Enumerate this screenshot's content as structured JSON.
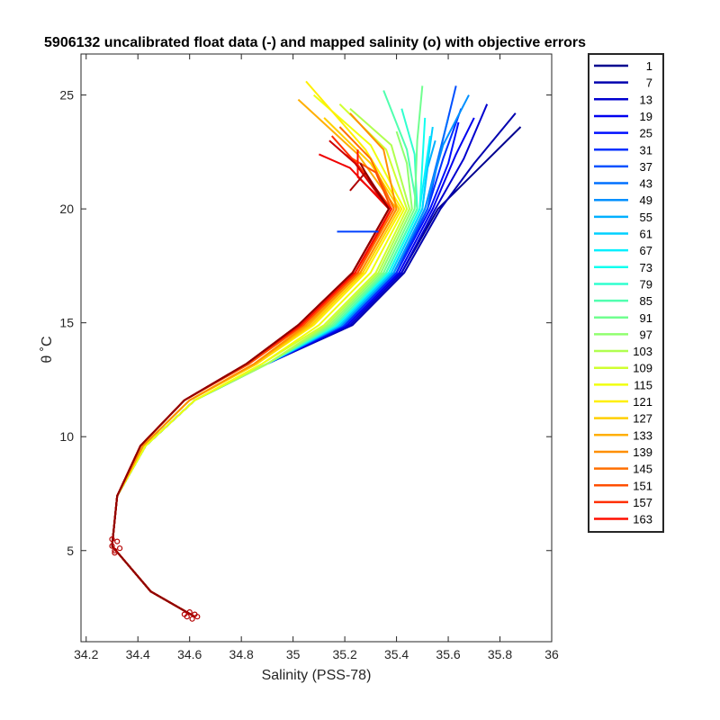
{
  "chart_data": {
    "type": "line",
    "title": "5906132 uncalibrated float data (-) and mapped salinity (o) with objective errors",
    "xlabel": "Salinity (PSS-78)",
    "ylabel": "θ ˚C",
    "xlim": [
      34.18,
      36.0
    ],
    "ylim": [
      1.0,
      26.8
    ],
    "x_ticks": [
      34.2,
      34.4,
      34.6,
      34.8,
      35,
      35.2,
      35.4,
      35.6,
      35.8,
      36
    ],
    "x_tick_labels": [
      "34.2",
      "34.4",
      "34.6",
      "34.8",
      "35",
      "35.2",
      "35.4",
      "35.6",
      "35.8",
      "36"
    ],
    "y_ticks": [
      5,
      10,
      15,
      20,
      25
    ],
    "y_tick_labels": [
      "5",
      "10",
      "15",
      "20",
      "25"
    ],
    "grid": false,
    "legend_position": "outside-right",
    "colormap": "jet",
    "series": [
      {
        "name": "1",
        "color": "#00008f",
        "x": [
          34.62,
          34.45,
          34.3,
          34.32,
          34.43,
          34.62,
          34.9,
          35.22,
          35.42,
          35.56,
          35.72,
          35.88
        ],
        "y": [
          2.1,
          3.2,
          5.2,
          7.4,
          9.6,
          11.6,
          13.2,
          14.9,
          17.2,
          20.0,
          21.8,
          23.6
        ]
      },
      {
        "name": "7",
        "color": "#0000af",
        "x": [
          34.62,
          34.45,
          34.3,
          34.32,
          34.43,
          34.62,
          34.9,
          35.23,
          35.43,
          35.57,
          35.7,
          35.86
        ],
        "y": [
          2.1,
          3.2,
          5.2,
          7.4,
          9.6,
          11.6,
          13.2,
          14.9,
          17.2,
          20.0,
          22.0,
          24.2
        ]
      },
      {
        "name": "13",
        "color": "#0000cf",
        "x": [
          34.62,
          34.45,
          34.3,
          34.32,
          34.43,
          34.62,
          34.9,
          35.22,
          35.42,
          35.55,
          35.66,
          35.75
        ],
        "y": [
          2.1,
          3.2,
          5.2,
          7.4,
          9.6,
          11.6,
          13.2,
          14.9,
          17.2,
          20.0,
          22.2,
          24.6
        ]
      },
      {
        "name": "19",
        "color": "#0000ef",
        "x": [
          34.62,
          34.45,
          34.3,
          34.32,
          34.43,
          34.62,
          34.9,
          35.21,
          35.41,
          35.54,
          35.63,
          35.7
        ],
        "y": [
          2.1,
          3.2,
          5.2,
          7.4,
          9.6,
          11.6,
          13.2,
          14.9,
          17.2,
          20.0,
          22.4,
          24.0
        ]
      },
      {
        "name": "25",
        "color": "#0010ff",
        "x": [
          34.62,
          34.45,
          34.3,
          34.32,
          34.43,
          34.62,
          34.9,
          35.2,
          35.4,
          35.53,
          35.6,
          35.64
        ],
        "y": [
          2.1,
          3.2,
          5.2,
          7.4,
          9.6,
          11.6,
          13.2,
          14.9,
          17.2,
          20.0,
          22.0,
          23.8
        ]
      },
      {
        "name": "31",
        "color": "#0030ff",
        "x": [
          34.62,
          34.45,
          34.3,
          34.32,
          34.43,
          34.62,
          34.9,
          35.2,
          35.4,
          35.52,
          35.58,
          35.65
        ],
        "y": [
          2.1,
          3.2,
          5.2,
          7.4,
          9.6,
          11.6,
          13.2,
          14.9,
          17.2,
          20.0,
          22.2,
          24.4
        ]
      },
      {
        "name": "37",
        "color": "#0050ff",
        "x": [
          34.62,
          34.45,
          34.3,
          34.32,
          34.43,
          34.62,
          34.9,
          35.19,
          35.39,
          35.52,
          35.57,
          35.63
        ],
        "y": [
          2.1,
          3.2,
          5.2,
          7.4,
          9.6,
          11.6,
          13.2,
          14.9,
          17.2,
          20.0,
          22.6,
          25.4
        ]
      },
      {
        "name": "43",
        "color": "#0070ff",
        "x": [
          34.62,
          34.45,
          34.3,
          34.32,
          34.43,
          34.62,
          34.9,
          35.19,
          35.39,
          35.51,
          35.56,
          35.6
        ],
        "y": [
          2.1,
          3.2,
          5.2,
          7.4,
          9.6,
          11.6,
          13.2,
          14.9,
          17.2,
          20.0,
          22.2,
          24.0
        ]
      },
      {
        "name": "49",
        "color": "#0090ff",
        "x": [
          34.62,
          34.45,
          34.3,
          34.32,
          34.43,
          34.62,
          34.9,
          35.19,
          35.39,
          35.51,
          35.58,
          35.68
        ],
        "y": [
          2.1,
          3.2,
          5.2,
          7.4,
          9.6,
          11.6,
          13.2,
          14.9,
          17.2,
          20.0,
          22.8,
          25.0
        ]
      },
      {
        "name": "55",
        "color": "#00b0ff",
        "x": [
          34.62,
          34.45,
          34.3,
          34.32,
          34.43,
          34.62,
          34.9,
          35.18,
          35.38,
          35.5,
          35.52,
          35.55
        ],
        "y": [
          2.1,
          3.2,
          5.2,
          7.4,
          9.6,
          11.6,
          13.2,
          14.9,
          17.2,
          20.0,
          21.8,
          23.0
        ]
      },
      {
        "name": "61",
        "color": "#00d0ff",
        "x": [
          34.62,
          34.45,
          34.3,
          34.32,
          34.43,
          34.62,
          34.9,
          35.18,
          35.38,
          35.5,
          35.52,
          35.54
        ],
        "y": [
          2.1,
          3.2,
          5.2,
          7.4,
          9.6,
          11.6,
          13.2,
          14.9,
          17.2,
          20.0,
          22.0,
          23.6
        ]
      },
      {
        "name": "67",
        "color": "#00f0ff",
        "x": [
          34.62,
          34.45,
          34.3,
          34.32,
          34.43,
          34.62,
          34.9,
          35.17,
          35.37,
          35.49,
          35.51,
          35.53
        ],
        "y": [
          2.1,
          3.2,
          5.2,
          7.4,
          9.6,
          11.6,
          13.2,
          14.9,
          17.2,
          20.0,
          21.6,
          23.2
        ]
      },
      {
        "name": "73",
        "color": "#10ffef",
        "x": [
          34.62,
          34.45,
          34.3,
          34.32,
          34.43,
          34.62,
          34.9,
          35.17,
          35.37,
          35.49,
          35.5,
          35.51
        ],
        "y": [
          2.1,
          3.2,
          5.2,
          7.4,
          9.6,
          11.6,
          13.2,
          14.9,
          17.2,
          20.0,
          22.0,
          24.0
        ]
      },
      {
        "name": "79",
        "color": "#30ffcf",
        "x": [
          34.62,
          34.45,
          34.3,
          34.32,
          34.43,
          34.62,
          34.9,
          35.16,
          35.36,
          35.48,
          35.47,
          35.42
        ],
        "y": [
          2.1,
          3.2,
          5.2,
          7.4,
          9.6,
          11.6,
          13.2,
          14.9,
          17.2,
          20.0,
          22.4,
          24.4
        ]
      },
      {
        "name": "85",
        "color": "#50ffaf",
        "x": [
          34.62,
          34.45,
          34.3,
          34.32,
          34.43,
          34.62,
          34.9,
          35.16,
          35.36,
          35.48,
          35.44,
          35.35
        ],
        "y": [
          2.1,
          3.2,
          5.2,
          7.4,
          9.6,
          11.6,
          13.2,
          14.9,
          17.2,
          20.0,
          22.6,
          25.2
        ]
      },
      {
        "name": "91",
        "color": "#70ff8f",
        "x": [
          34.62,
          34.45,
          34.3,
          34.32,
          34.43,
          34.62,
          34.9,
          35.15,
          35.35,
          35.47,
          35.48,
          35.5
        ],
        "y": [
          2.1,
          3.2,
          5.2,
          7.4,
          9.6,
          11.6,
          13.2,
          14.9,
          17.2,
          20.0,
          23.0,
          25.4
        ]
      },
      {
        "name": "97",
        "color": "#90ff6f",
        "x": [
          34.62,
          34.45,
          34.3,
          34.32,
          34.43,
          34.62,
          34.9,
          35.14,
          35.34,
          35.46,
          35.44,
          35.4
        ],
        "y": [
          2.1,
          3.2,
          5.2,
          7.4,
          9.6,
          11.6,
          13.2,
          14.9,
          17.2,
          20.0,
          22.0,
          23.4
        ]
      },
      {
        "name": "103",
        "color": "#b0ff4f",
        "x": [
          34.62,
          34.45,
          34.3,
          34.32,
          34.43,
          34.62,
          34.9,
          35.13,
          35.33,
          35.45,
          35.38,
          35.22
        ],
        "y": [
          2.1,
          3.2,
          5.2,
          7.4,
          9.6,
          11.6,
          13.2,
          14.9,
          17.2,
          20.0,
          22.8,
          24.4
        ]
      },
      {
        "name": "109",
        "color": "#d0ff2f",
        "x": [
          34.62,
          34.45,
          34.3,
          34.32,
          34.43,
          34.62,
          34.88,
          35.12,
          35.32,
          35.44,
          35.36,
          35.18
        ],
        "y": [
          2.1,
          3.2,
          5.2,
          7.4,
          9.6,
          11.6,
          13.2,
          14.9,
          17.2,
          20.0,
          22.6,
          24.6
        ]
      },
      {
        "name": "115",
        "color": "#f0ff0f",
        "x": [
          34.62,
          34.45,
          34.3,
          34.32,
          34.43,
          34.62,
          34.88,
          35.1,
          35.3,
          35.43,
          35.3,
          35.08
        ],
        "y": [
          2.1,
          3.2,
          5.2,
          7.4,
          9.6,
          11.6,
          13.2,
          14.9,
          17.2,
          20.0,
          22.8,
          25.0
        ]
      },
      {
        "name": "121",
        "color": "#ffef00",
        "x": [
          34.62,
          34.45,
          34.3,
          34.32,
          34.42,
          34.6,
          34.86,
          35.08,
          35.28,
          35.42,
          35.28,
          35.05
        ],
        "y": [
          2.1,
          3.2,
          5.2,
          7.4,
          9.6,
          11.6,
          13.2,
          14.9,
          17.2,
          20.0,
          22.6,
          25.6
        ]
      },
      {
        "name": "127",
        "color": "#ffcf00",
        "x": [
          34.62,
          34.45,
          34.3,
          34.32,
          34.42,
          34.6,
          34.86,
          35.07,
          35.27,
          35.41,
          35.3,
          35.12
        ],
        "y": [
          2.1,
          3.2,
          5.2,
          7.4,
          9.6,
          11.6,
          13.2,
          14.9,
          17.2,
          20.0,
          22.0,
          24.0
        ]
      },
      {
        "name": "133",
        "color": "#ffaf00",
        "x": [
          34.62,
          34.45,
          34.3,
          34.32,
          34.42,
          34.6,
          34.85,
          35.06,
          35.26,
          35.4,
          35.25,
          35.02
        ],
        "y": [
          2.1,
          3.2,
          5.2,
          7.4,
          9.6,
          11.6,
          13.2,
          14.9,
          17.2,
          20.0,
          22.4,
          24.8
        ]
      },
      {
        "name": "139",
        "color": "#ff8f00",
        "x": [
          34.62,
          34.45,
          34.3,
          34.32,
          34.42,
          34.6,
          34.85,
          35.05,
          35.26,
          35.4,
          35.35,
          35.22
        ],
        "y": [
          2.1,
          3.2,
          5.2,
          7.4,
          9.6,
          11.6,
          13.2,
          14.9,
          17.2,
          20.0,
          22.6,
          24.2
        ]
      },
      {
        "name": "145",
        "color": "#ff6f00",
        "x": [
          34.62,
          34.45,
          34.3,
          34.32,
          34.41,
          34.58,
          34.83,
          35.04,
          35.25,
          35.39,
          35.3,
          35.18
        ],
        "y": [
          2.1,
          3.2,
          5.2,
          7.4,
          9.6,
          11.6,
          13.2,
          14.9,
          17.2,
          20.0,
          22.2,
          23.6
        ]
      },
      {
        "name": "151",
        "color": "#ff4f00",
        "x": [
          34.62,
          34.45,
          34.3,
          34.32,
          34.41,
          34.58,
          34.83,
          35.04,
          35.25,
          35.38,
          35.32,
          35.2
        ],
        "y": [
          2.1,
          3.2,
          5.2,
          7.4,
          9.6,
          11.6,
          13.2,
          14.9,
          17.2,
          20.0,
          21.6,
          22.4
        ]
      },
      {
        "name": "157",
        "color": "#ff2f00",
        "x": [
          34.62,
          34.45,
          34.3,
          34.32,
          34.41,
          34.58,
          34.82,
          35.03,
          35.24,
          35.38,
          35.26,
          35.15
        ],
        "y": [
          2.1,
          3.2,
          5.2,
          7.4,
          9.6,
          11.6,
          13.2,
          14.9,
          17.2,
          20.0,
          21.8,
          23.2
        ]
      },
      {
        "name": "163",
        "color": "#ff0f00",
        "x": [
          34.62,
          34.45,
          34.3,
          34.32,
          34.41,
          34.58,
          34.82,
          35.03,
          35.24,
          35.38,
          35.25,
          35.25
        ],
        "y": [
          2.1,
          3.2,
          5.2,
          7.4,
          9.6,
          11.6,
          13.2,
          14.9,
          17.2,
          20.0,
          21.4,
          22.6
        ]
      },
      {
        "name": "",
        "color": "#ef0000",
        "x": [
          34.62,
          34.45,
          34.3,
          34.32,
          34.41,
          34.58,
          34.82,
          35.02,
          35.23,
          35.37,
          35.22,
          35.1
        ],
        "y": [
          2.1,
          3.2,
          5.2,
          7.4,
          9.6,
          11.6,
          13.2,
          14.9,
          17.2,
          20.0,
          21.8,
          22.4
        ]
      },
      {
        "name": "",
        "color": "#cf0000",
        "x": [
          34.62,
          34.45,
          34.3,
          34.32,
          34.41,
          34.58,
          34.82,
          35.02,
          35.23,
          35.37,
          35.24,
          35.14
        ],
        "y": [
          2.1,
          3.2,
          5.2,
          7.4,
          9.6,
          11.6,
          13.2,
          14.9,
          17.2,
          20.0,
          22.0,
          23.0
        ]
      },
      {
        "name": "",
        "color": "#af0000",
        "x": [
          34.62,
          34.45,
          34.3,
          34.32,
          34.41,
          34.58,
          34.82,
          35.02,
          35.23,
          35.37,
          35.28,
          35.22
        ],
        "y": [
          2.1,
          3.2,
          5.2,
          7.4,
          9.6,
          11.6,
          13.2,
          14.9,
          17.2,
          20.0,
          21.6,
          20.8
        ]
      },
      {
        "name": "",
        "color": "#8f0000",
        "x": [
          34.62,
          34.45,
          34.3,
          34.32,
          34.41,
          34.58,
          34.82,
          35.02,
          35.23,
          35.37,
          35.3,
          35.26
        ],
        "y": [
          2.1,
          3.2,
          5.2,
          7.4,
          9.6,
          11.6,
          13.2,
          14.9,
          17.2,
          20.0,
          21.2,
          22.0
        ]
      }
    ],
    "legend": {
      "entries": [
        "1",
        "7",
        "13",
        "19",
        "25",
        "31",
        "37",
        "43",
        "49",
        "55",
        "61",
        "67",
        "73",
        "79",
        "85",
        "91",
        "97",
        "103",
        "109",
        "115",
        "121",
        "127",
        "133",
        "139",
        "145",
        "151",
        "157",
        "163"
      ],
      "colors": [
        "#00008f",
        "#0000af",
        "#0000cf",
        "#0000ef",
        "#0010ff",
        "#0030ff",
        "#0050ff",
        "#0070ff",
        "#0090ff",
        "#00b0ff",
        "#00d0ff",
        "#00f0ff",
        "#10ffef",
        "#30ffcf",
        "#50ffaf",
        "#70ff8f",
        "#90ff6f",
        "#b0ff4f",
        "#d0ff2f",
        "#f0ff0f",
        "#ffef00",
        "#ffcf00",
        "#ffaf00",
        "#ff8f00",
        "#ff6f00",
        "#ff4f00",
        "#ff2f00",
        "#ff0f00"
      ]
    },
    "mapped_points": {
      "marker": "o",
      "color": "#b40000",
      "x": [
        34.58,
        34.59,
        34.6,
        34.61,
        34.62,
        34.63,
        34.3,
        34.3,
        34.31,
        34.31,
        34.32,
        34.33
      ],
      "y": [
        2.2,
        2.1,
        2.3,
        2.0,
        2.2,
        2.1,
        5.5,
        5.2,
        5.0,
        4.9,
        5.4,
        5.1
      ]
    },
    "annotations": [
      {
        "color": "#0040ff",
        "x": [
          35.17,
          35.33
        ],
        "y": [
          19.0,
          19.0
        ]
      }
    ]
  }
}
